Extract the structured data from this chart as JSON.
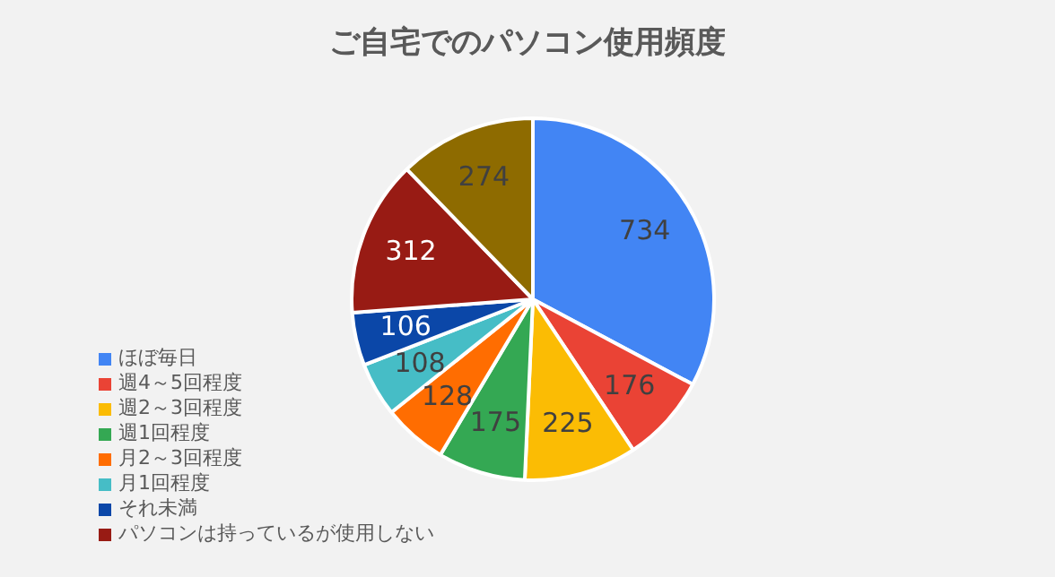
{
  "chart_data": {
    "type": "pie",
    "title": "ご自宅でのパソコン使用頻度",
    "categories": [
      "ほぼ毎日",
      "週4～5回程度",
      "週2～3回程度",
      "週1回程度",
      "月2～3回程度",
      "月1回程度",
      "それ未満",
      "パソコンは持っているが使用しない",
      null
    ],
    "values": [
      734,
      176,
      225,
      175,
      128,
      108,
      106,
      312,
      274
    ],
    "colors": [
      "#4285f4",
      "#ea4335",
      "#fbbc04",
      "#34a853",
      "#ff6d01",
      "#46bdc6",
      "#0b47a8",
      "#981b14",
      "#8e6b00"
    ],
    "data_labels": true,
    "legend": "left"
  }
}
